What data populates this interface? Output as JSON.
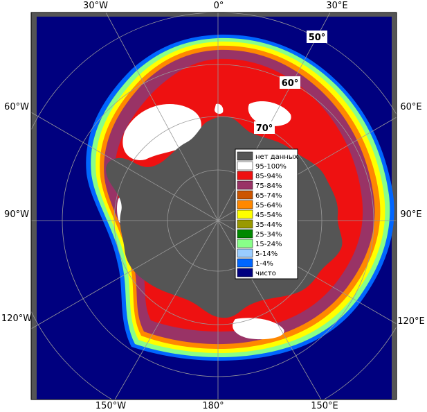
{
  "map": {
    "lon_labels": {
      "top": [
        "30°W",
        "0°",
        "30°E"
      ],
      "left": [
        "60°W",
        "90°W",
        "120°W"
      ],
      "right": [
        "60°E",
        "90°E",
        "120°E"
      ],
      "bottom": [
        "150°W",
        "180°",
        "150°E"
      ]
    },
    "lat_labels": [
      "50°",
      "60°",
      "70°"
    ],
    "colors": {
      "ocean": "#00007f",
      "land": "#555555",
      "nodata_bg": "#555555",
      "ice_red": "#ee1111",
      "ice_white": "#ffffff",
      "ice_purple": "#993366",
      "grid": "#9a9a9a"
    }
  },
  "legend": {
    "items": [
      {
        "label": "нет данных",
        "color": "#555555"
      },
      {
        "label": "95-100%",
        "color": "#ffffff"
      },
      {
        "label": "85-94%",
        "color": "#ee1111"
      },
      {
        "label": "75-84%",
        "color": "#993366"
      },
      {
        "label": "65-74%",
        "color": "#cc5500"
      },
      {
        "label": "55-64%",
        "color": "#ff8800"
      },
      {
        "label": "45-54%",
        "color": "#ffff00"
      },
      {
        "label": "35-44%",
        "color": "#999900"
      },
      {
        "label": "25-34%",
        "color": "#008800"
      },
      {
        "label": "15-24%",
        "color": "#88ff88"
      },
      {
        "label": "5-14%",
        "color": "#99ccff"
      },
      {
        "label": "1-4%",
        "color": "#0066ff"
      },
      {
        "label": "чисто",
        "color": "#00007f"
      }
    ]
  }
}
